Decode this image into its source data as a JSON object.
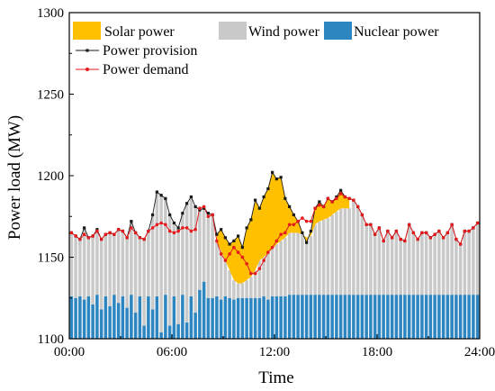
{
  "chart_data": {
    "type": "area",
    "xlabel": "Time",
    "ylabel": "Power load (MW)",
    "ylim": [
      1100,
      1300
    ],
    "xlim": [
      0,
      24
    ],
    "x_ticks": [
      0,
      6,
      12,
      18,
      24
    ],
    "x_tick_labels": [
      "00:00",
      "06:00",
      "12:00",
      "18:00",
      "24:00"
    ],
    "y_ticks": [
      1100,
      1150,
      1200,
      1250,
      1300
    ],
    "y_tick_labels": [
      "1100",
      "1150",
      "1200",
      "1250",
      "1300"
    ],
    "grid": false,
    "legend": {
      "position": "top-left",
      "entries": [
        "Solar power",
        "Wind power",
        "Nuclear power",
        "Power provision",
        "Power demand"
      ]
    },
    "colors": {
      "solar": "#FFC000",
      "wind": "#C9C9C9",
      "nuclear": "#2E86C1",
      "provision": "#1A1A1A",
      "demand": "#E41A1C"
    },
    "interval_hours": 0.25,
    "series": [
      {
        "name": "Nuclear power",
        "kind": "bar",
        "values": [
          1126,
          1125,
          1126,
          1124,
          1126,
          1121,
          1127,
          1118,
          1126,
          1120,
          1127,
          1122,
          1126,
          1119,
          1127,
          1116,
          1126,
          1108,
          1126,
          1118,
          1126,
          1104,
          1127,
          1108,
          1126,
          1109,
          1127,
          1110,
          1126,
          1116,
          1130,
          1135,
          1125,
          1125,
          1126,
          1124,
          1126,
          1125,
          1124,
          1125,
          1125,
          1125,
          1125,
          1125,
          1125,
          1126,
          1124,
          1126,
          1126,
          1126,
          1126,
          1127,
          1127,
          1127,
          1127,
          1127,
          1127,
          1127,
          1127,
          1127,
          1127,
          1127,
          1127,
          1127,
          1127,
          1127,
          1127,
          1127,
          1127,
          1127,
          1127,
          1127,
          1127,
          1127,
          1127,
          1127,
          1127,
          1127,
          1127,
          1127,
          1127,
          1127,
          1127,
          1127,
          1127,
          1127,
          1127,
          1127,
          1127,
          1127,
          1127,
          1127,
          1127,
          1127,
          1127,
          1127
        ]
      },
      {
        "name": "Power provision",
        "kind": "line",
        "values": [
          1165,
          1163,
          1161,
          1168,
          1162,
          1163,
          1167,
          1161,
          1164,
          1165,
          1164,
          1167,
          1166,
          1162,
          1172,
          1165,
          1162,
          1161,
          1166,
          1176,
          1190,
          1188,
          1186,
          1176,
          1171,
          1168,
          1177,
          1183,
          1187,
          1181,
          1179,
          1180,
          1177,
          1176,
          1164,
          1167,
          1162,
          1158,
          1160,
          1163,
          1156,
          1168,
          1173,
          1185,
          1180,
          1187,
          1192,
          1202,
          1198,
          1199,
          1186,
          1181,
          1176,
          1172,
          1165,
          1159,
          1166,
          1180,
          1184,
          1181,
          1186,
          1184,
          1187,
          1191,
          1187,
          1186,
          1185,
          1181,
          1176,
          1170,
          1170,
          1164,
          1168,
          1160,
          1166,
          1162,
          1166,
          1161,
          1160,
          1170,
          1165,
          1161,
          1165,
          1165,
          1162,
          1164,
          1166,
          1162,
          1165,
          1170,
          1161,
          1158,
          1166,
          1166,
          1168,
          1171
        ]
      },
      {
        "name": "Power demand",
        "kind": "line",
        "values": [
          1165,
          1163,
          1161,
          1164,
          1162,
          1163,
          1166,
          1161,
          1164,
          1165,
          1164,
          1167,
          1166,
          1162,
          1168,
          1165,
          1162,
          1161,
          1166,
          1168,
          1170,
          1171,
          1170,
          1166,
          1165,
          1166,
          1168,
          1168,
          1166,
          1167,
          1180,
          1181,
          1175,
          1176,
          1160,
          1152,
          1148,
          1152,
          1156,
          1153,
          1150,
          1146,
          1140,
          1140,
          1143,
          1148,
          1153,
          1156,
          1160,
          1164,
          1165,
          1170,
          1170,
          1172,
          1174,
          1172,
          1172,
          1180,
          1182,
          1181,
          1186,
          1184,
          1186,
          1189,
          1187,
          1186,
          1185,
          1181,
          1176,
          1170,
          1170,
          1164,
          1168,
          1160,
          1166,
          1162,
          1166,
          1161,
          1160,
          1170,
          1165,
          1161,
          1165,
          1165,
          1162,
          1164,
          1166,
          1162,
          1165,
          1170,
          1161,
          1158,
          1166,
          1166,
          1168,
          1171
        ]
      },
      {
        "name": "Solar power",
        "kind": "stacked-area",
        "note_top": "top edge equals Power provision",
        "values_bottom": [
          null,
          null,
          null,
          null,
          null,
          null,
          null,
          null,
          null,
          null,
          null,
          null,
          null,
          null,
          null,
          null,
          null,
          null,
          null,
          null,
          null,
          null,
          null,
          null,
          null,
          null,
          null,
          null,
          null,
          null,
          null,
          null,
          null,
          null,
          1160,
          1154,
          1148,
          1142,
          1136,
          1134,
          1134,
          1136,
          1138,
          1142,
          1148,
          1150,
          1153,
          1155,
          1158,
          1160,
          1162,
          1165,
          1165,
          1165,
          1164,
          1162,
          1163,
          1170,
          1172,
          1173,
          1174,
          1176,
          1178,
          1180,
          1180,
          1180,
          null,
          null,
          null,
          null,
          null,
          null,
          null,
          null,
          null,
          null,
          null,
          null,
          null,
          null,
          null,
          null,
          null,
          null,
          null,
          null,
          null,
          null,
          null,
          null,
          null,
          null,
          null,
          null,
          null,
          null
        ]
      }
    ]
  }
}
